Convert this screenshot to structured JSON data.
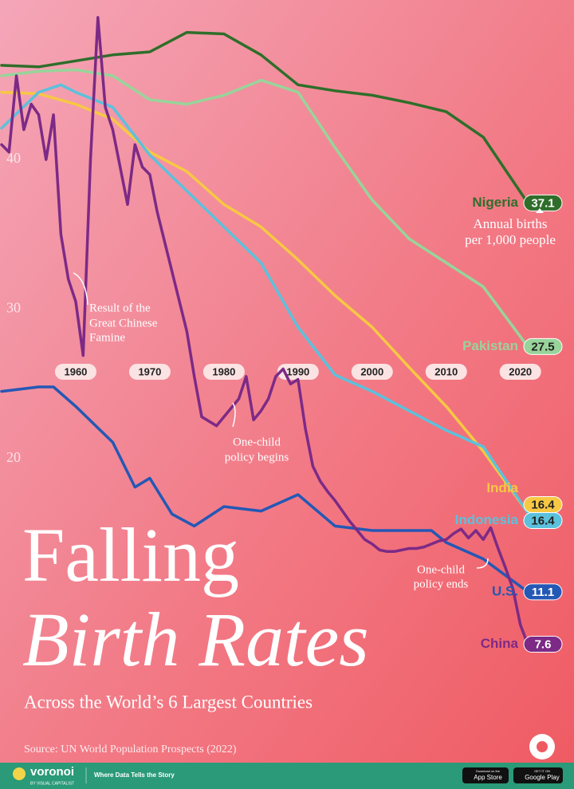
{
  "chart_data": {
    "type": "line",
    "title": [
      "Falling",
      "Birth Rates"
    ],
    "subtitle": "Across the World’s 6 Largest Countries",
    "source": "Source: UN World Population Prospects (2022)",
    "annotations": {
      "unit": [
        "Annual births",
        "per 1,000 people"
      ],
      "famine": [
        "Result of the",
        "Great Chinese",
        "Famine"
      ],
      "policy_begins": [
        "One-child",
        "policy begins"
      ],
      "policy_ends": [
        "One-child",
        "policy ends"
      ]
    },
    "xlim": [
      1950,
      2021
    ],
    "ylim": [
      7,
      50
    ],
    "xticks": [
      1960,
      1970,
      1980,
      1990,
      2000,
      2010,
      2020
    ],
    "yticks": [
      20,
      30,
      40
    ],
    "grid": false,
    "series": [
      {
        "name": "Nigeria",
        "color": "#2f6e2a",
        "x": [
          1950,
          1955,
          1960,
          1965,
          1970,
          1975,
          1980,
          1985,
          1990,
          1995,
          2000,
          2005,
          2010,
          2015,
          2021
        ],
        "values": [
          46.3,
          46.2,
          46.6,
          47.0,
          47.2,
          48.5,
          48.4,
          47.0,
          45.0,
          44.6,
          44.3,
          43.8,
          43.2,
          41.5,
          37.1
        ]
      },
      {
        "name": "Pakistan",
        "color": "#98d49a",
        "x": [
          1950,
          1955,
          1960,
          1965,
          1970,
          1975,
          1980,
          1985,
          1990,
          1995,
          2000,
          2005,
          2010,
          2015,
          2021
        ],
        "values": [
          45.6,
          45.9,
          46.0,
          45.6,
          44.0,
          43.7,
          44.3,
          45.3,
          44.5,
          40.8,
          37.3,
          34.7,
          33.1,
          31.5,
          27.5
        ]
      },
      {
        "name": "India",
        "color": "#f7c843",
        "x": [
          1950,
          1955,
          1960,
          1965,
          1970,
          1975,
          1980,
          1985,
          1990,
          1995,
          2000,
          2005,
          2010,
          2015,
          2021
        ],
        "values": [
          44.5,
          44.4,
          43.7,
          42.7,
          40.5,
          39.2,
          37.0,
          35.5,
          33.3,
          30.9,
          28.8,
          26.1,
          23.5,
          20.5,
          16.4
        ]
      },
      {
        "name": "Indonesia",
        "color": "#5cc1dc",
        "x": [
          1950,
          1955,
          1958,
          1960,
          1965,
          1970,
          1975,
          1980,
          1985,
          1990,
          1995,
          2000,
          2005,
          2010,
          2015,
          2021
        ],
        "values": [
          42.1,
          44.5,
          45.0,
          44.5,
          43.5,
          40.3,
          37.9,
          35.5,
          33.1,
          28.8,
          25.6,
          24.5,
          23.2,
          21.9,
          20.8,
          16.4
        ]
      },
      {
        "name": "U.S.",
        "color": "#2458b5",
        "x": [
          1950,
          1955,
          1957,
          1960,
          1965,
          1968,
          1970,
          1973,
          1976,
          1980,
          1985,
          1990,
          1995,
          2000,
          2005,
          2008,
          2010,
          2015,
          2021
        ],
        "values": [
          24.5,
          24.8,
          24.8,
          23.5,
          21.1,
          18.1,
          18.7,
          16.3,
          15.5,
          16.8,
          16.5,
          17.6,
          15.5,
          15.2,
          15.2,
          15.2,
          14.4,
          13.3,
          11.1
        ]
      },
      {
        "name": "China",
        "color": "#7c2a86",
        "x": [
          1950,
          1951,
          1952,
          1953,
          1954,
          1955,
          1956,
          1957,
          1958,
          1959,
          1960,
          1961,
          1962,
          1963,
          1964,
          1965,
          1966,
          1967,
          1968,
          1969,
          1970,
          1971,
          1972,
          1973,
          1974,
          1975,
          1976,
          1977,
          1978,
          1979,
          1980,
          1981,
          1982,
          1983,
          1984,
          1985,
          1986,
          1987,
          1988,
          1989,
          1990,
          1991,
          1992,
          1993,
          1994,
          1995,
          1996,
          1997,
          1998,
          1999,
          2000,
          2001,
          2002,
          2003,
          2004,
          2005,
          2006,
          2007,
          2008,
          2009,
          2010,
          2011,
          2012,
          2013,
          2014,
          2015,
          2016,
          2017,
          2018,
          2019,
          2020,
          2021
        ],
        "values": [
          41.0,
          40.5,
          45.6,
          42.0,
          43.7,
          43.0,
          40.0,
          43.0,
          35.0,
          32.0,
          30.5,
          26.9,
          40.0,
          49.5,
          43.5,
          42.0,
          39.5,
          37.0,
          41.0,
          39.5,
          39.0,
          36.5,
          34.5,
          32.5,
          30.5,
          28.5,
          25.5,
          22.8,
          22.5,
          22.2,
          22.8,
          23.4,
          24.0,
          25.5,
          22.6,
          23.2,
          24.0,
          25.5,
          26.0,
          25.0,
          25.3,
          22.0,
          19.5,
          18.5,
          17.8,
          17.2,
          16.5,
          15.8,
          15.2,
          14.6,
          14.3,
          13.9,
          13.8,
          13.8,
          13.9,
          14.0,
          14.0,
          14.1,
          14.3,
          14.5,
          14.6,
          15.0,
          15.3,
          14.7,
          15.2,
          14.6,
          15.4,
          14.0,
          12.7,
          11.3,
          8.9,
          7.6
        ]
      }
    ]
  },
  "footer": {
    "brand": "voronoi",
    "by": "BY VISUAL CAPITALIST",
    "tagline": "Where Data Tells the Story",
    "app_store": [
      "Download on the",
      "App Store"
    ],
    "google_play": [
      "GET IT ON",
      "Google Play"
    ]
  }
}
